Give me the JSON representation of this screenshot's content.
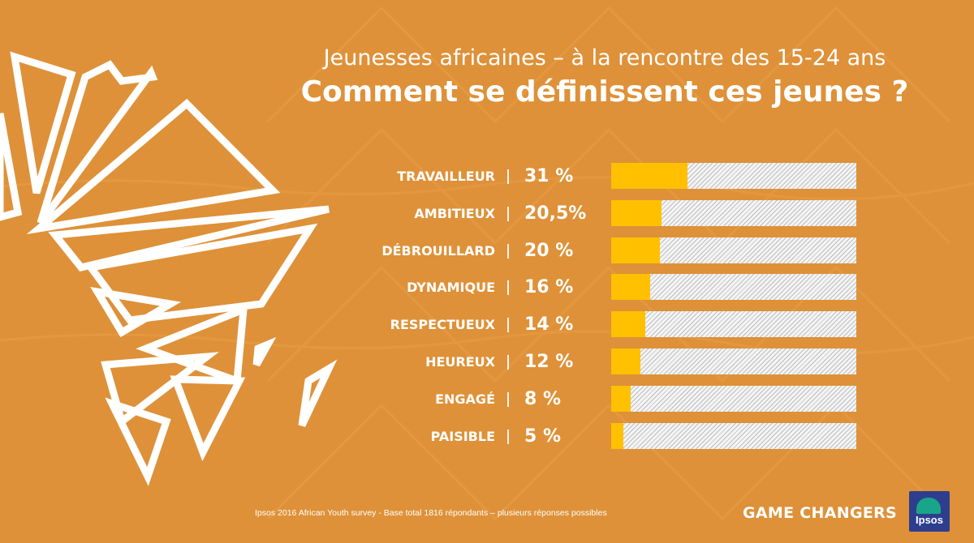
{
  "subtitle": "Jeunesses africaines – à la rencontre des 15-24 ans",
  "title": "Comment se définissent ces jeunes ?",
  "chart_data": {
    "type": "bar",
    "orientation": "horizontal",
    "categories": [
      "TRAVAILLEUR",
      "AMBITIEUX",
      "DÉBROUILLARD",
      "DYNAMIQUE",
      "RESPECTUEUX",
      "HEUREUX",
      "ENGAGÉ",
      "PAISIBLE"
    ],
    "values": [
      31,
      20.5,
      20,
      16,
      14,
      12,
      8,
      5
    ],
    "value_labels": [
      "31 %",
      "20,5%",
      "20 %",
      "16 %",
      "14 %",
      "12 %",
      "8 %",
      "5 %"
    ],
    "xlim": [
      0,
      100
    ],
    "bar_color": "#FFC000",
    "track_color": "#F4F4F4"
  },
  "footnote": "Ipsos 2016 African Youth survey  - Base total 1816 répondants – plusieurs réponses possibles",
  "brand": "GAME CHANGERS",
  "logo_text": "Ipsos",
  "colors": {
    "background": "#DE9138",
    "logo_blue": "#2E3E8F",
    "logo_green": "#18A589"
  }
}
